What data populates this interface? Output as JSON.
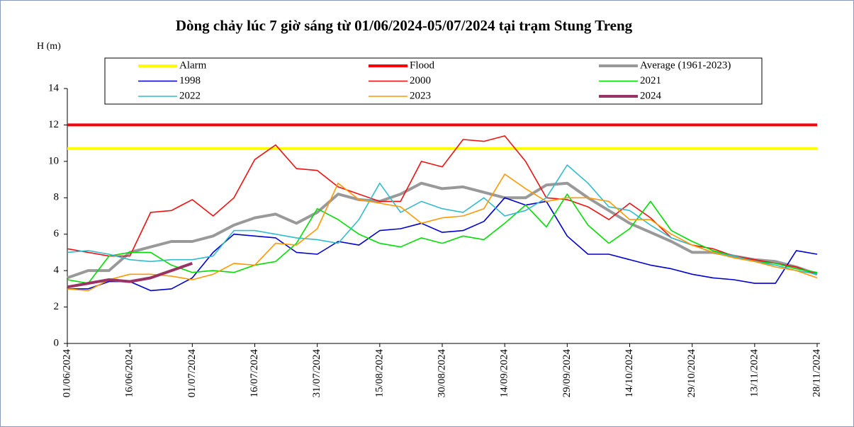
{
  "chart_data": {
    "type": "line",
    "title": "Dòng chảy lúc 7 giờ sáng từ 01/06/2024-05/07/2024 tại trạm Stung Treng",
    "y_label": "H (m)",
    "x": [
      "01/06/2024",
      "06/06/2024",
      "11/06/2024",
      "16/06/2024",
      "21/06/2024",
      "26/06/2024",
      "01/07/2024",
      "06/07/2024",
      "11/07/2024",
      "16/07/2024",
      "21/07/2024",
      "26/07/2024",
      "31/07/2024",
      "05/08/2024",
      "10/08/2024",
      "15/08/2024",
      "20/08/2024",
      "25/08/2024",
      "30/08/2024",
      "04/09/2024",
      "09/09/2024",
      "14/09/2024",
      "19/09/2024",
      "24/09/2024",
      "29/09/2024",
      "04/10/2024",
      "09/10/2024",
      "14/10/2024",
      "19/10/2024",
      "24/10/2024",
      "29/10/2024",
      "03/11/2024",
      "08/11/2024",
      "13/11/2024",
      "18/11/2024",
      "23/11/2024",
      "28/11/2024"
    ],
    "xticks": [
      "01/06/2024",
      "16/06/2024",
      "01/07/2024",
      "16/07/2024",
      "31/07/2024",
      "15/08/2024",
      "30/08/2024",
      "14/09/2024",
      "29/09/2024",
      "14/10/2024",
      "29/10/2024",
      "13/11/2024",
      "28/11/2024"
    ],
    "ylim": [
      0,
      14
    ],
    "yticks": [
      0,
      2,
      4,
      6,
      8,
      10,
      12,
      14
    ],
    "grid": false,
    "series": [
      {
        "name": "Alarm",
        "color": "#ffff00",
        "width": 4,
        "values": [
          10.7,
          10.7,
          10.7,
          10.7,
          10.7,
          10.7,
          10.7,
          10.7,
          10.7,
          10.7,
          10.7,
          10.7,
          10.7,
          10.7,
          10.7,
          10.7,
          10.7,
          10.7,
          10.7,
          10.7,
          10.7,
          10.7,
          10.7,
          10.7,
          10.7,
          10.7,
          10.7,
          10.7,
          10.7,
          10.7,
          10.7,
          10.7,
          10.7,
          10.7,
          10.7,
          10.7,
          10.7
        ]
      },
      {
        "name": "Flood",
        "color": "#ff0000",
        "width": 4,
        "values": [
          12,
          12,
          12,
          12,
          12,
          12,
          12,
          12,
          12,
          12,
          12,
          12,
          12,
          12,
          12,
          12,
          12,
          12,
          12,
          12,
          12,
          12,
          12,
          12,
          12,
          12,
          12,
          12,
          12,
          12,
          12,
          12,
          12,
          12,
          12,
          12,
          12
        ]
      },
      {
        "name": "Average (1961-2023)",
        "color": "#999999",
        "width": 4,
        "values": [
          3.6,
          4.0,
          4.0,
          5.0,
          5.3,
          5.6,
          5.6,
          5.9,
          6.5,
          6.9,
          7.1,
          6.6,
          7.2,
          8.2,
          7.9,
          7.8,
          8.2,
          8.8,
          8.5,
          8.6,
          8.3,
          8.0,
          8.0,
          8.7,
          8.8,
          8.0,
          7.3,
          6.6,
          6.1,
          5.6,
          5.0,
          5.0,
          4.8,
          4.6,
          4.5,
          4.2,
          3.8
        ]
      },
      {
        "name": "1998",
        "color": "#0000cc",
        "width": 1.6,
        "values": [
          3.0,
          3.0,
          3.4,
          3.4,
          2.9,
          3.0,
          3.6,
          5.0,
          6.0,
          5.9,
          5.8,
          5.0,
          4.9,
          5.6,
          5.4,
          6.2,
          6.3,
          6.6,
          6.1,
          6.2,
          6.7,
          8.0,
          7.6,
          7.8,
          5.9,
          4.9,
          4.9,
          4.6,
          4.3,
          4.1,
          3.8,
          3.6,
          3.5,
          3.3,
          3.3,
          5.1,
          4.9
        ]
      },
      {
        "name": "2000",
        "color": "#ee1111",
        "width": 1.6,
        "values": [
          5.2,
          5.0,
          4.8,
          4.8,
          7.2,
          7.3,
          7.9,
          7.0,
          8.0,
          10.1,
          10.9,
          9.6,
          9.5,
          8.6,
          8.2,
          7.8,
          7.8,
          10.0,
          9.7,
          11.2,
          11.1,
          11.4,
          10.0,
          8.0,
          7.9,
          7.5,
          6.8,
          7.7,
          6.9,
          5.8,
          5.4,
          5.2,
          4.8,
          4.6,
          4.4,
          4.2,
          3.8
        ]
      },
      {
        "name": "2021",
        "color": "#00dd00",
        "width": 1.6,
        "values": [
          3.5,
          3.3,
          4.8,
          5.0,
          5.0,
          4.3,
          3.9,
          4.0,
          3.9,
          4.3,
          4.5,
          5.5,
          7.4,
          6.8,
          6.0,
          5.5,
          5.3,
          5.8,
          5.5,
          5.9,
          5.7,
          6.6,
          7.6,
          6.4,
          8.2,
          6.5,
          5.5,
          6.3,
          7.8,
          6.2,
          5.6,
          5.1,
          4.8,
          4.5,
          4.4,
          4.1,
          3.9
        ]
      },
      {
        "name": "2022",
        "color": "#33bbcc",
        "width": 1.6,
        "values": [
          5.0,
          5.1,
          4.9,
          4.6,
          4.5,
          4.6,
          4.6,
          4.8,
          6.2,
          6.2,
          6.0,
          5.8,
          5.7,
          5.5,
          6.8,
          8.8,
          7.2,
          7.8,
          7.4,
          7.2,
          8.0,
          7.0,
          7.3,
          8.0,
          9.8,
          8.8,
          7.5,
          7.3,
          6.5,
          5.8,
          5.4,
          5.0,
          4.8,
          4.5,
          4.3,
          4.0,
          3.8
        ]
      },
      {
        "name": "2023",
        "color": "#ff9900",
        "width": 1.6,
        "values": [
          3.0,
          2.9,
          3.5,
          3.8,
          3.8,
          3.7,
          3.5,
          3.8,
          4.4,
          4.3,
          5.5,
          5.4,
          6.3,
          8.8,
          7.9,
          7.7,
          7.5,
          6.6,
          6.9,
          7.0,
          7.4,
          9.3,
          8.5,
          7.8,
          8.0,
          8.0,
          7.8,
          6.8,
          6.8,
          6.0,
          5.4,
          5.0,
          4.7,
          4.5,
          4.2,
          4.0,
          3.6
        ]
      },
      {
        "name": "2024",
        "color": "#993366",
        "width": 4,
        "values": [
          3.1,
          3.3,
          3.5,
          3.4,
          3.6,
          4.0,
          4.4,
          null,
          null,
          null,
          null,
          null,
          null,
          null,
          null,
          null,
          null,
          null,
          null,
          null,
          null,
          null,
          null,
          null,
          null,
          null,
          null,
          null,
          null,
          null,
          null,
          null,
          null,
          null,
          null,
          null,
          null
        ]
      }
    ]
  }
}
